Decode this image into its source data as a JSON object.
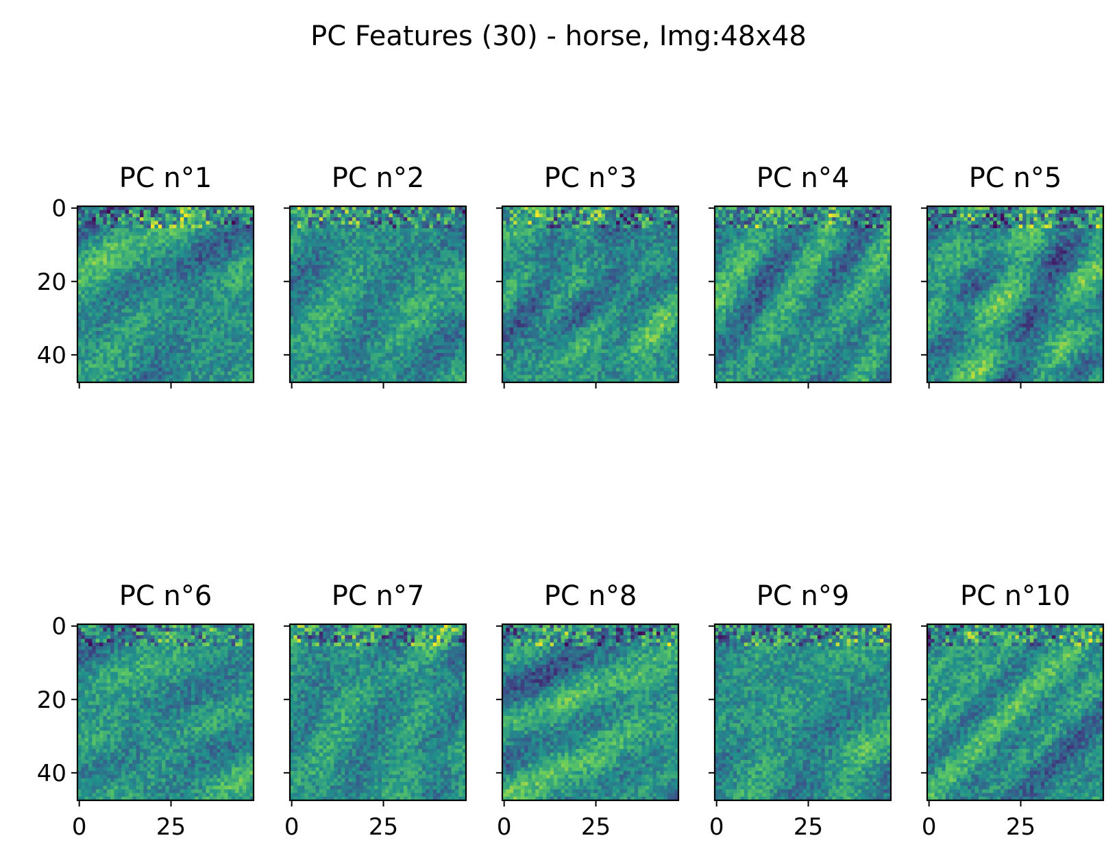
{
  "chart_data": {
    "type": "heatmap",
    "title": "PC Features (30) - horse, Img:48x48",
    "colormap": "viridis",
    "image_size": [
      48,
      48
    ],
    "rows": 2,
    "cols": 5,
    "x_ticks": [
      0,
      25
    ],
    "y_ticks": [
      0,
      20,
      40
    ],
    "x_range": [
      -0.5,
      47.5
    ],
    "y_range": [
      47.5,
      -0.5
    ],
    "grid": false,
    "legend": "none",
    "panels": [
      {
        "title": "PC n°1"
      },
      {
        "title": "PC n°2"
      },
      {
        "title": "PC n°3"
      },
      {
        "title": "PC n°4"
      },
      {
        "title": "PC n°5"
      },
      {
        "title": "PC n°6"
      },
      {
        "title": "PC n°7"
      },
      {
        "title": "PC n°8"
      },
      {
        "title": "PC n°9"
      },
      {
        "title": "PC n°10"
      }
    ]
  }
}
